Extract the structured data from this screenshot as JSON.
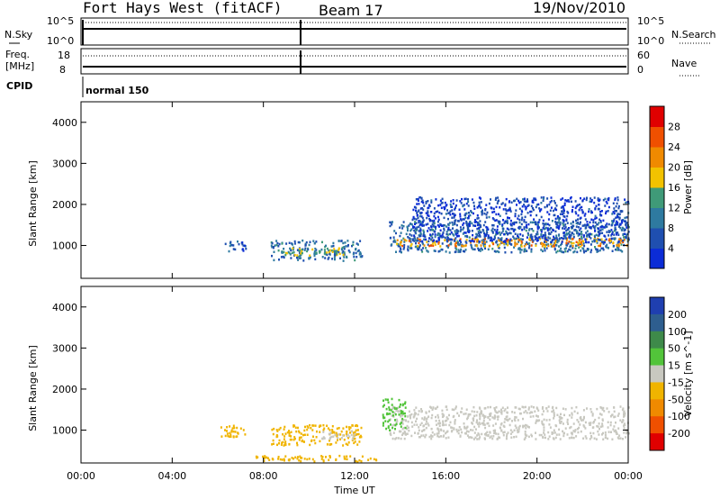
{
  "header": {
    "station": "Fort Hays West (fitACF)",
    "beam": "Beam 17",
    "date": "19/Nov/2010"
  },
  "top_panels": {
    "nsky_label": "N.Sky",
    "nsky_ticks": [
      "10^5",
      "10^0"
    ],
    "nsearch_label": "N.Search",
    "nsearch_ticks": [
      "10^5",
      "10^0"
    ],
    "freq_label": "Freq.",
    "freq_unit": "[MHz]",
    "freq_ticks": [
      "18",
      "8"
    ],
    "nave_label": "Nave",
    "nave_ticks": [
      "60",
      "0"
    ],
    "cpid_label": "CPID",
    "cpid_value": "normal 150"
  },
  "colors": {
    "power_scale": [
      "#0b2cd6",
      "#1f4fb0",
      "#2e7aa0",
      "#3f9a78",
      "#f2c200",
      "#f08a00",
      "#f05000",
      "#e00000"
    ],
    "velocity_scale": [
      "#1f3fb0",
      "#2e5e8f",
      "#3e8a4a",
      "#52c43a",
      "#c8c8c0",
      "#f0b400",
      "#f08a00",
      "#f05000",
      "#e00000"
    ]
  },
  "chart_data": [
    {
      "type": "heatmap",
      "panel": "power",
      "ylabel": "Slant Range [km]",
      "y_ticks": [
        "1000",
        "2000",
        "3000",
        "4000"
      ],
      "ylim": [
        200,
        4500
      ],
      "x_ticks": [
        "00:00",
        "04:00",
        "08:00",
        "12:00",
        "16:00",
        "20:00",
        "00:00"
      ],
      "xlim_hours": [
        0,
        24
      ],
      "colorbar": {
        "label": "Power [dB]",
        "ticks": [
          "4",
          "8",
          "12",
          "16",
          "20",
          "24",
          "28"
        ],
        "range": [
          0,
          30
        ]
      },
      "regions": [
        {
          "t": [
            6.3,
            7.2
          ],
          "r": [
            850,
            1150
          ],
          "value": 6
        },
        {
          "t": [
            8.3,
            12.3
          ],
          "r": [
            650,
            1150
          ],
          "value": 8
        },
        {
          "t": [
            8.6,
            11.5
          ],
          "r": [
            780,
            960
          ],
          "value": 14
        },
        {
          "t": [
            13.5,
            24.0
          ],
          "r": [
            850,
            1600
          ],
          "value": 8
        },
        {
          "t": [
            13.8,
            24.0
          ],
          "r": [
            1000,
            1200
          ],
          "value": 20
        },
        {
          "t": [
            14.5,
            24.0
          ],
          "r": [
            1100,
            2200
          ],
          "value": 4
        }
      ]
    },
    {
      "type": "heatmap",
      "panel": "velocity",
      "ylabel": "Slant Range [km]",
      "y_ticks": [
        "1000",
        "2000",
        "3000",
        "4000"
      ],
      "ylim": [
        200,
        4500
      ],
      "x_ticks": [
        "00:00",
        "04:00",
        "08:00",
        "12:00",
        "16:00",
        "20:00",
        "00:00"
      ],
      "xlim_hours": [
        0,
        24
      ],
      "xlabel": "Time UT",
      "colorbar": {
        "label": "Velocity [m s^-1]",
        "ticks": [
          "200",
          "100",
          "50",
          "15",
          "-15",
          "-50",
          "-100",
          "-200"
        ],
        "range": [
          -250,
          250
        ]
      },
      "regions": [
        {
          "t": [
            6.0,
            7.2
          ],
          "r": [
            850,
            1150
          ],
          "value": -60
        },
        {
          "t": [
            8.3,
            12.3
          ],
          "r": [
            650,
            1150
          ],
          "value": -70
        },
        {
          "t": [
            10.5,
            12.0
          ],
          "r": [
            800,
            1000
          ],
          "value": 0
        },
        {
          "t": [
            7.5,
            13.0
          ],
          "r": [
            250,
            400
          ],
          "value": -70
        },
        {
          "t": [
            13.5,
            24.0
          ],
          "r": [
            800,
            1600
          ],
          "value": 0
        },
        {
          "t": [
            13.2,
            14.2
          ],
          "r": [
            1000,
            1800
          ],
          "value": 40
        }
      ]
    }
  ]
}
